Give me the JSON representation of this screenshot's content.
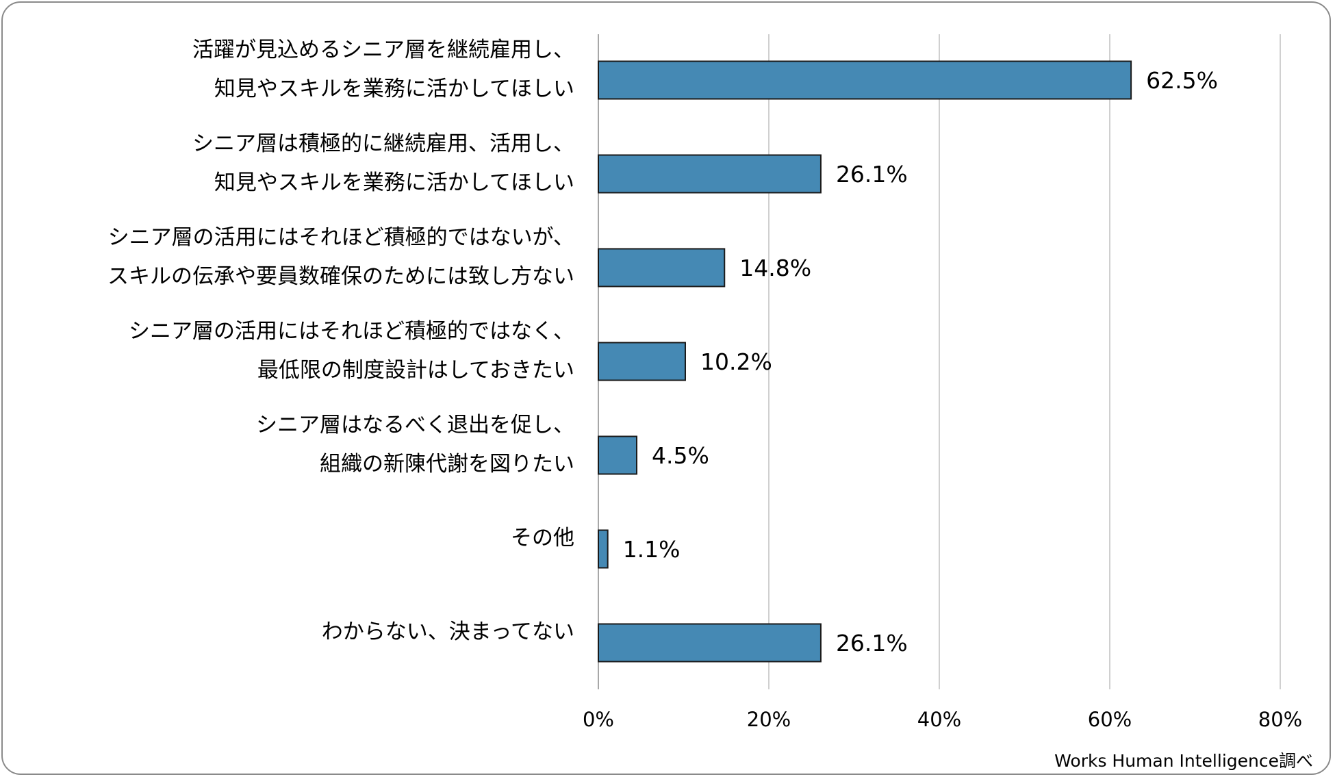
{
  "chart_data": {
    "type": "bar",
    "orientation": "horizontal",
    "categories": [
      [
        "活躍が見込めるシニア層を継続雇用し、",
        "知見やスキルを業務に活かしてほしい"
      ],
      [
        "シニア層は積極的に継続雇用、活用し、",
        "知見やスキルを業務に活かしてほしい"
      ],
      [
        "シニア層の活用にはそれほど積極的ではないが、",
        "スキルの伝承や要員数確保のためには致し方ない"
      ],
      [
        "シニア層の活用にはそれほど積極的ではなく、",
        "最低限の制度設計はしておきたい"
      ],
      [
        "シニア層はなるべく退出を促し、",
        "組織の新陳代謝を図りたい"
      ],
      [
        "その他"
      ],
      [
        "わからない、決まってない"
      ]
    ],
    "values": [
      62.5,
      26.1,
      14.8,
      10.2,
      4.5,
      1.1,
      26.1
    ],
    "value_labels": [
      "62.5%",
      "26.1%",
      "14.8%",
      "10.2%",
      "4.5%",
      "1.1%",
      "26.1%"
    ],
    "xlim": [
      0,
      80
    ],
    "xticks": [
      0,
      20,
      40,
      60,
      80
    ],
    "xtick_labels": [
      "0%",
      "20%",
      "40%",
      "60%",
      "80%"
    ],
    "grid": "vertical",
    "bar_color": "#4589b4",
    "bar_edge_color": "#1a1a1a",
    "gridline_color": "#c0c0c0",
    "source": "Works Human Intelligence調べ"
  }
}
